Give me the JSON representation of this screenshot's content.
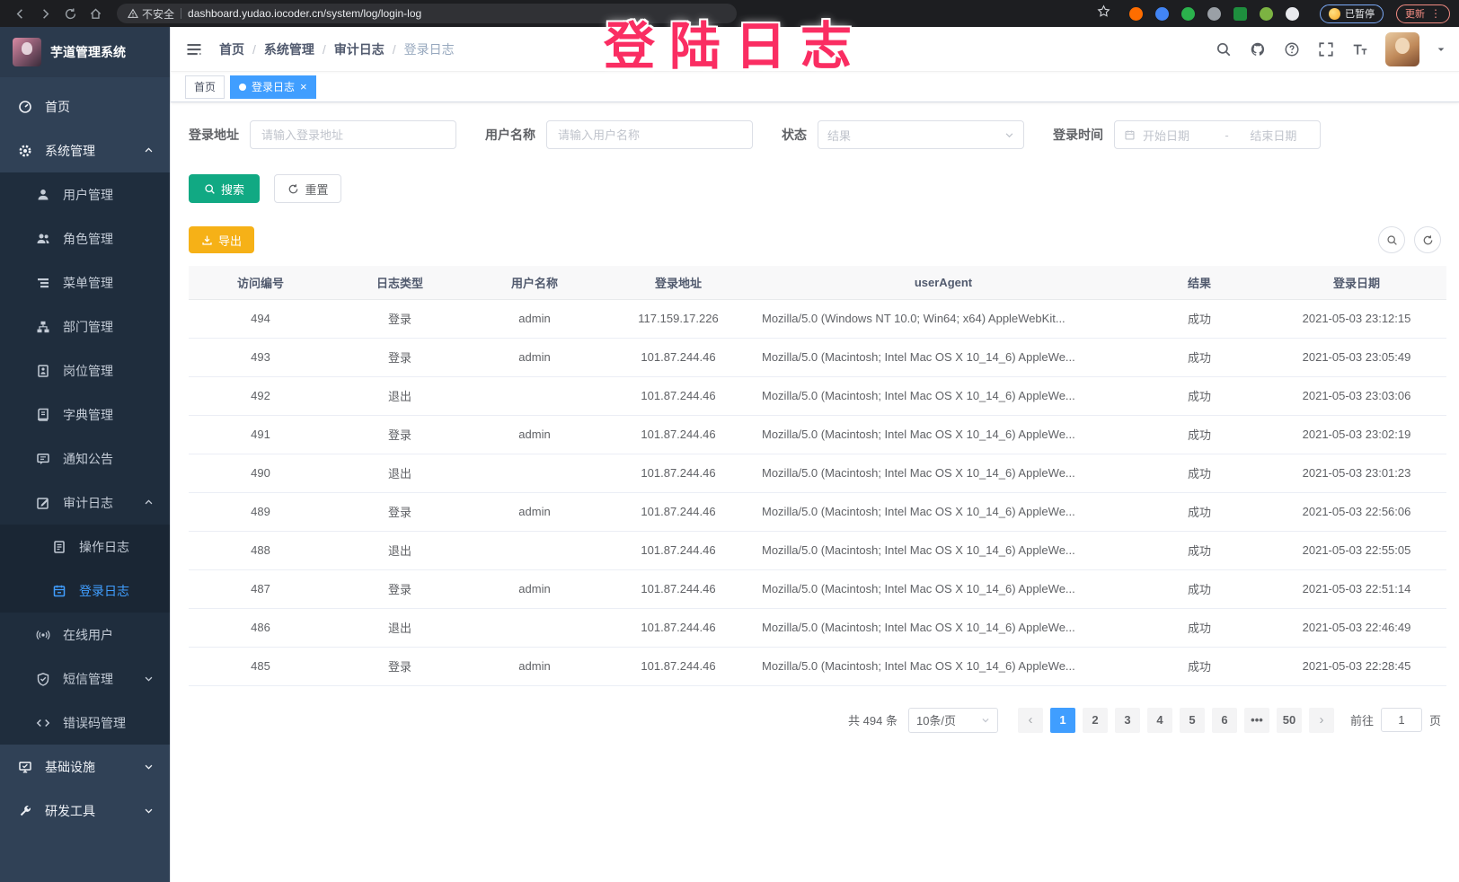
{
  "browser": {
    "security_label": "不安全",
    "url": "dashboard.yudao.iocoder.cn/system/log/login-log",
    "paused_badge": "已暂停",
    "update_label": "更新",
    "extension_colors": [
      "#ff6d00",
      "#4285f4",
      "#2bb24c",
      "#9aa0a6",
      "#1e8e3e",
      "#7cb342",
      "#e8eaed"
    ]
  },
  "overlay": {
    "title": "登陆日志",
    "color": "#FA2D62"
  },
  "sidebar": {
    "app_title": "芋道管理系统",
    "items": [
      {
        "label": "首页",
        "icon": "dashboard",
        "level": 0
      },
      {
        "label": "系统管理",
        "icon": "gear",
        "level": 0,
        "arrow": "up"
      },
      {
        "label": "用户管理",
        "icon": "user",
        "level": 1
      },
      {
        "label": "角色管理",
        "icon": "peoples",
        "level": 1
      },
      {
        "label": "菜单管理",
        "icon": "tree-table",
        "level": 1
      },
      {
        "label": "部门管理",
        "icon": "tree",
        "level": 1
      },
      {
        "label": "岗位管理",
        "icon": "post",
        "level": 1
      },
      {
        "label": "字典管理",
        "icon": "dict",
        "level": 1
      },
      {
        "label": "通知公告",
        "icon": "message",
        "level": 1
      },
      {
        "label": "审计日志",
        "icon": "log",
        "level": 1,
        "arrow": "up"
      },
      {
        "label": "操作日志",
        "icon": "form",
        "level": 2
      },
      {
        "label": "登录日志",
        "icon": "logininfor",
        "level": 2,
        "active": true
      },
      {
        "label": "在线用户",
        "icon": "online",
        "level": 1
      },
      {
        "label": "短信管理",
        "icon": "sms",
        "level": 1,
        "arrow": "down"
      },
      {
        "label": "错误码管理",
        "icon": "code",
        "level": 1
      },
      {
        "label": "基础设施",
        "icon": "monitor",
        "level": 0,
        "arrow": "down"
      },
      {
        "label": "研发工具",
        "icon": "tool",
        "level": 0,
        "arrow": "down"
      }
    ]
  },
  "header": {
    "breadcrumb": [
      "首页",
      "系统管理",
      "审计日志",
      "登录日志"
    ]
  },
  "tags": [
    {
      "label": "首页",
      "active": false
    },
    {
      "label": "登录日志",
      "active": true,
      "closable": true
    }
  ],
  "filters": {
    "address_label": "登录地址",
    "address_placeholder": "请输入登录地址",
    "username_label": "用户名称",
    "username_placeholder": "请输入用户名称",
    "status_label": "状态",
    "status_placeholder": "结果",
    "time_label": "登录时间",
    "start_placeholder": "开始日期",
    "range_separator": "-",
    "end_placeholder": "结束日期"
  },
  "actions": {
    "search_label": "搜索",
    "reset_label": "重置"
  },
  "toolbar": {
    "export_label": "导出"
  },
  "table": {
    "headers": [
      "访问编号",
      "日志类型",
      "用户名称",
      "登录地址",
      "userAgent",
      "结果",
      "登录日期"
    ],
    "rows": [
      [
        "494",
        "登录",
        "admin",
        "117.159.17.226",
        "Mozilla/5.0 (Windows NT 10.0; Win64; x64) AppleWebKit...",
        "成功",
        "2021-05-03 23:12:15"
      ],
      [
        "493",
        "登录",
        "admin",
        "101.87.244.46",
        "Mozilla/5.0 (Macintosh; Intel Mac OS X 10_14_6) AppleWe...",
        "成功",
        "2021-05-03 23:05:49"
      ],
      [
        "492",
        "退出",
        "",
        "101.87.244.46",
        "Mozilla/5.0 (Macintosh; Intel Mac OS X 10_14_6) AppleWe...",
        "成功",
        "2021-05-03 23:03:06"
      ],
      [
        "491",
        "登录",
        "admin",
        "101.87.244.46",
        "Mozilla/5.0 (Macintosh; Intel Mac OS X 10_14_6) AppleWe...",
        "成功",
        "2021-05-03 23:02:19"
      ],
      [
        "490",
        "退出",
        "",
        "101.87.244.46",
        "Mozilla/5.0 (Macintosh; Intel Mac OS X 10_14_6) AppleWe...",
        "成功",
        "2021-05-03 23:01:23"
      ],
      [
        "489",
        "登录",
        "admin",
        "101.87.244.46",
        "Mozilla/5.0 (Macintosh; Intel Mac OS X 10_14_6) AppleWe...",
        "成功",
        "2021-05-03 22:56:06"
      ],
      [
        "488",
        "退出",
        "",
        "101.87.244.46",
        "Mozilla/5.0 (Macintosh; Intel Mac OS X 10_14_6) AppleWe...",
        "成功",
        "2021-05-03 22:55:05"
      ],
      [
        "487",
        "登录",
        "admin",
        "101.87.244.46",
        "Mozilla/5.0 (Macintosh; Intel Mac OS X 10_14_6) AppleWe...",
        "成功",
        "2021-05-03 22:51:14"
      ],
      [
        "486",
        "退出",
        "",
        "101.87.244.46",
        "Mozilla/5.0 (Macintosh; Intel Mac OS X 10_14_6) AppleWe...",
        "成功",
        "2021-05-03 22:46:49"
      ],
      [
        "485",
        "登录",
        "admin",
        "101.87.244.46",
        "Mozilla/5.0 (Macintosh; Intel Mac OS X 10_14_6) AppleWe...",
        "成功",
        "2021-05-03 22:28:45"
      ]
    ]
  },
  "pagination": {
    "total_text": "共 494 条",
    "page_size": "10条/页",
    "pages": [
      "1",
      "2",
      "3",
      "4",
      "5",
      "6",
      "•••",
      "50"
    ],
    "active_page": "1",
    "goto_label": "前往",
    "goto_value": "1",
    "unit_label": "页"
  },
  "colors": {
    "accent": "#409EFF",
    "search_button": "#11A983",
    "export_button": "#F6B117",
    "sidebar_bg": "#304156",
    "submenu_bg": "#1f2d3d"
  }
}
